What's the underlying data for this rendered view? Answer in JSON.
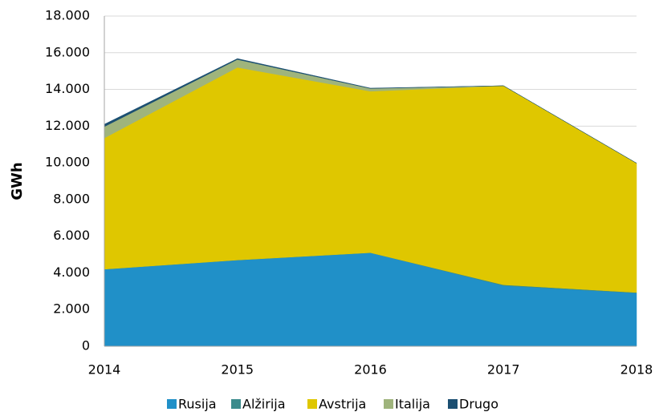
{
  "chart_data": {
    "type": "stacked_area",
    "ylabel": "GWh",
    "x": [
      "2014",
      "2015",
      "2016",
      "2017",
      "2018"
    ],
    "series": [
      {
        "name": "Rusija",
        "color": "#2090c8",
        "values": [
          4200,
          4700,
          5100,
          3300,
          2900
        ]
      },
      {
        "name": "Alžirija",
        "color": "#3b8b8c",
        "values": [
          0,
          0,
          0,
          50,
          30
        ]
      },
      {
        "name": "Avstrija",
        "color": "#dfc700",
        "values": [
          7150,
          10500,
          8800,
          10850,
          7050
        ]
      },
      {
        "name": "Italija",
        "color": "#9fb47c",
        "values": [
          620,
          430,
          150,
          0,
          0
        ]
      },
      {
        "name": "Drugo",
        "color": "#1b4f72",
        "values": [
          130,
          50,
          20,
          0,
          0
        ]
      }
    ],
    "ylim": [
      0,
      18000
    ],
    "yticks": [
      0,
      {
        "value": 2000,
        "label": "2.000"
      },
      {
        "value": 4000,
        "label": "4.000"
      },
      {
        "value": 6000,
        "label": "6.000"
      },
      {
        "value": 8000,
        "label": "8.000"
      },
      {
        "value": 10000,
        "label": "10.000"
      },
      {
        "value": 12000,
        "label": "12.000"
      },
      {
        "value": 14000,
        "label": "14.000"
      },
      {
        "value": 16000,
        "label": "16.000"
      },
      {
        "value": 18000,
        "label": "18.000"
      }
    ],
    "grid": true,
    "legend": "bottom"
  }
}
